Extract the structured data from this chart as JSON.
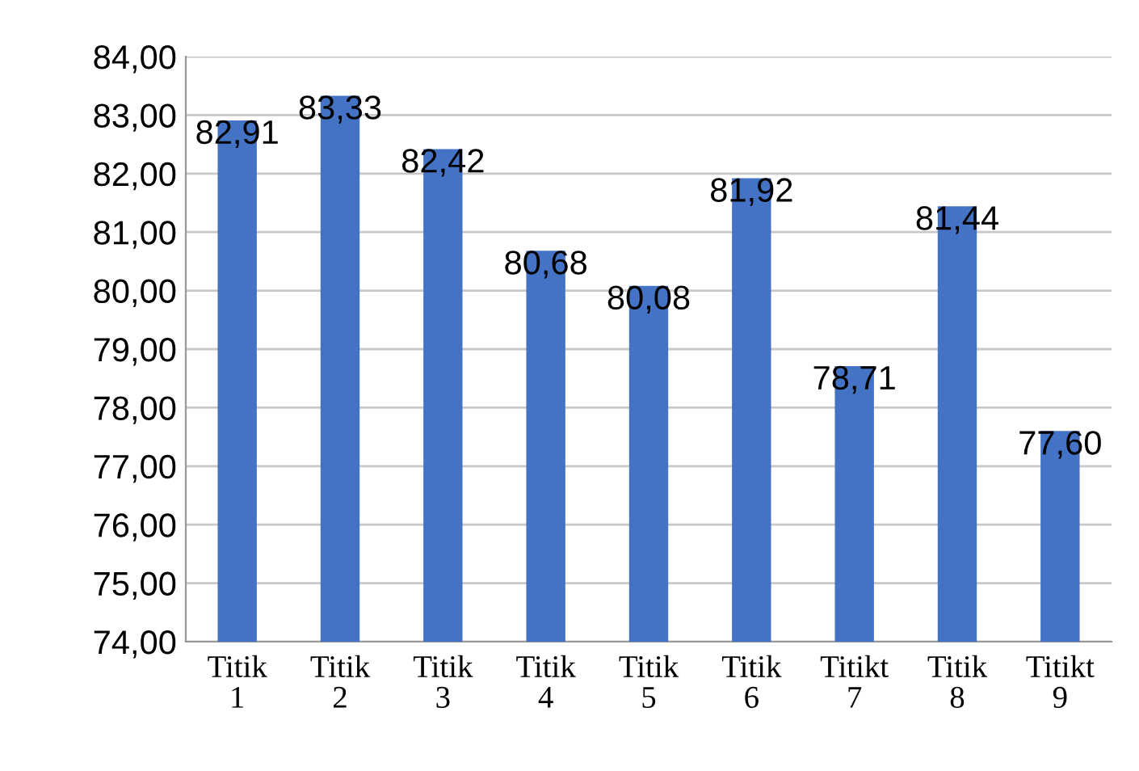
{
  "chart_data": {
    "type": "bar",
    "categories": [
      "Titik\n1",
      "Titik\n2",
      "Titik\n3",
      "Titik\n4",
      "Titik\n5",
      "Titik\n6",
      "Titikt\n7",
      "Titik\n8",
      "Titikt\n9"
    ],
    "values": [
      82.91,
      83.33,
      82.42,
      80.68,
      80.08,
      81.92,
      78.71,
      81.44,
      77.6
    ],
    "value_labels": [
      "82,91",
      "83,33",
      "82,42",
      "80,68",
      "80,08",
      "81,92",
      "78,71",
      "81,44",
      "77,60"
    ],
    "color": "#4472c4",
    "ylim": [
      74,
      84
    ],
    "yticks": [
      {
        "value": 74,
        "label": "74,00"
      },
      {
        "value": 75,
        "label": "75,00"
      },
      {
        "value": 76,
        "label": "76,00"
      },
      {
        "value": 77,
        "label": "77,00"
      },
      {
        "value": 78,
        "label": "78,00"
      },
      {
        "value": 79,
        "label": "79,00"
      },
      {
        "value": 80,
        "label": "80,00"
      },
      {
        "value": 81,
        "label": "81,00"
      },
      {
        "value": 82,
        "label": "82,00"
      },
      {
        "value": 83,
        "label": "83,00"
      },
      {
        "value": 84,
        "label": "84,00"
      }
    ],
    "grid": "y"
  }
}
